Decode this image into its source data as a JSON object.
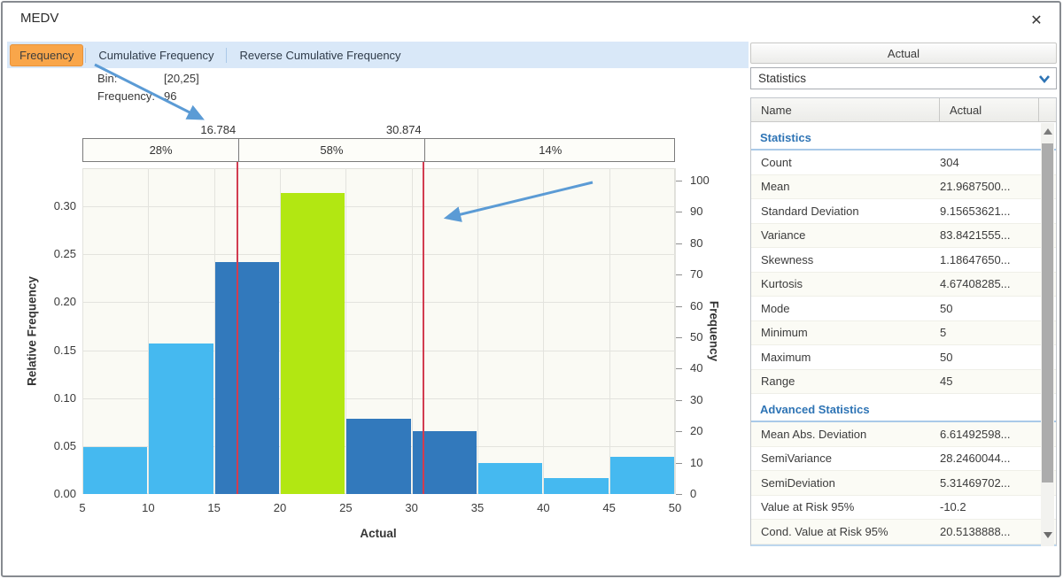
{
  "window": {
    "title": "MEDV",
    "close_glyph": "✕"
  },
  "tabs": [
    {
      "label": "Frequency",
      "active": true
    },
    {
      "label": "Cumulative Frequency",
      "active": false
    },
    {
      "label": "Reverse Cumulative Frequency",
      "active": false
    }
  ],
  "tooltip": {
    "bin_label": "Bin:",
    "bin_value": "[20,25]",
    "freq_label": "Frequency:",
    "freq_value": "96"
  },
  "chart_data": {
    "type": "bar",
    "subtype": "histogram",
    "title": "",
    "xlabel": "Actual",
    "ylabel_left": "Relative Frequency",
    "ylabel_right": "Frequency",
    "bins": [
      "[5,10)",
      "[10,15)",
      "[15,20)",
      "[20,25)",
      "[25,30)",
      "[30,35)",
      "[35,40)",
      "[40,45)",
      "[45,50]"
    ],
    "bin_edges": [
      5,
      10,
      15,
      20,
      25,
      30,
      35,
      40,
      45,
      50
    ],
    "frequencies": [
      15,
      48,
      74,
      96,
      24,
      20,
      10,
      5,
      12
    ],
    "relative_frequencies": [
      0.0493,
      0.1579,
      0.2434,
      0.3158,
      0.0789,
      0.0658,
      0.0329,
      0.0164,
      0.0395
    ],
    "bar_styles": [
      "light",
      "light",
      "dark",
      "highlight",
      "dark",
      "dark",
      "light",
      "light",
      "light"
    ],
    "hovered_bin": "[20,25]",
    "x_ticks": [
      5,
      10,
      15,
      20,
      25,
      30,
      35,
      40,
      45,
      50
    ],
    "y_left_ticks": [
      "0.00",
      "0.05",
      "0.10",
      "0.15",
      "0.20",
      "0.25",
      "0.30"
    ],
    "y_right_ticks": [
      0,
      10,
      20,
      30,
      40,
      50,
      60,
      70,
      80,
      90,
      100
    ],
    "xlim": [
      5,
      50
    ],
    "ylim_left": [
      0,
      0.34
    ],
    "ylim_right": [
      0,
      104
    ],
    "grid": true,
    "legend": "none",
    "markers": [
      {
        "label": "16.784",
        "value": 16.784
      },
      {
        "label": "30.874",
        "value": 30.874
      }
    ],
    "band_segments": [
      {
        "label": "28%"
      },
      {
        "label": "58%"
      },
      {
        "label": "14%"
      }
    ],
    "colors": {
      "bar_light": "#45b9f0",
      "bar_dark": "#3279bc",
      "bar_highlight": "#b2e712",
      "marker_line": "#d23c50",
      "arrow": "#5b9bd5",
      "active_tab": "#f9a64a"
    }
  },
  "side_panel": {
    "header": "Actual",
    "dropdown_value": "Statistics",
    "table": {
      "columns": [
        "Name",
        "Actual"
      ],
      "rows": [
        {
          "type": "section",
          "name": "Statistics"
        },
        {
          "type": "row",
          "name": "Count",
          "value": "304"
        },
        {
          "type": "row",
          "name": "Mean",
          "value": "21.9687500..."
        },
        {
          "type": "row",
          "name": "Standard Deviation",
          "value": "9.15653621..."
        },
        {
          "type": "row",
          "name": "Variance",
          "value": "83.8421555..."
        },
        {
          "type": "row",
          "name": "Skewness",
          "value": "1.18647650..."
        },
        {
          "type": "row",
          "name": "Kurtosis",
          "value": "4.67408285..."
        },
        {
          "type": "row",
          "name": "Mode",
          "value": "50"
        },
        {
          "type": "row",
          "name": "Minimum",
          "value": "5"
        },
        {
          "type": "row",
          "name": "Maximum",
          "value": "50"
        },
        {
          "type": "row",
          "name": "Range",
          "value": "45"
        },
        {
          "type": "section",
          "name": "Advanced Statistics"
        },
        {
          "type": "row",
          "name": "Mean Abs. Deviation",
          "value": "6.61492598..."
        },
        {
          "type": "row",
          "name": "SemiVariance",
          "value": "28.2460044..."
        },
        {
          "type": "row",
          "name": "SemiDeviation",
          "value": "5.31469702..."
        },
        {
          "type": "row",
          "name": "Value at Risk 95%",
          "value": "-10.2"
        },
        {
          "type": "row",
          "name": "Cond. Value at Risk 95%",
          "value": "20.5138888..."
        }
      ]
    }
  }
}
